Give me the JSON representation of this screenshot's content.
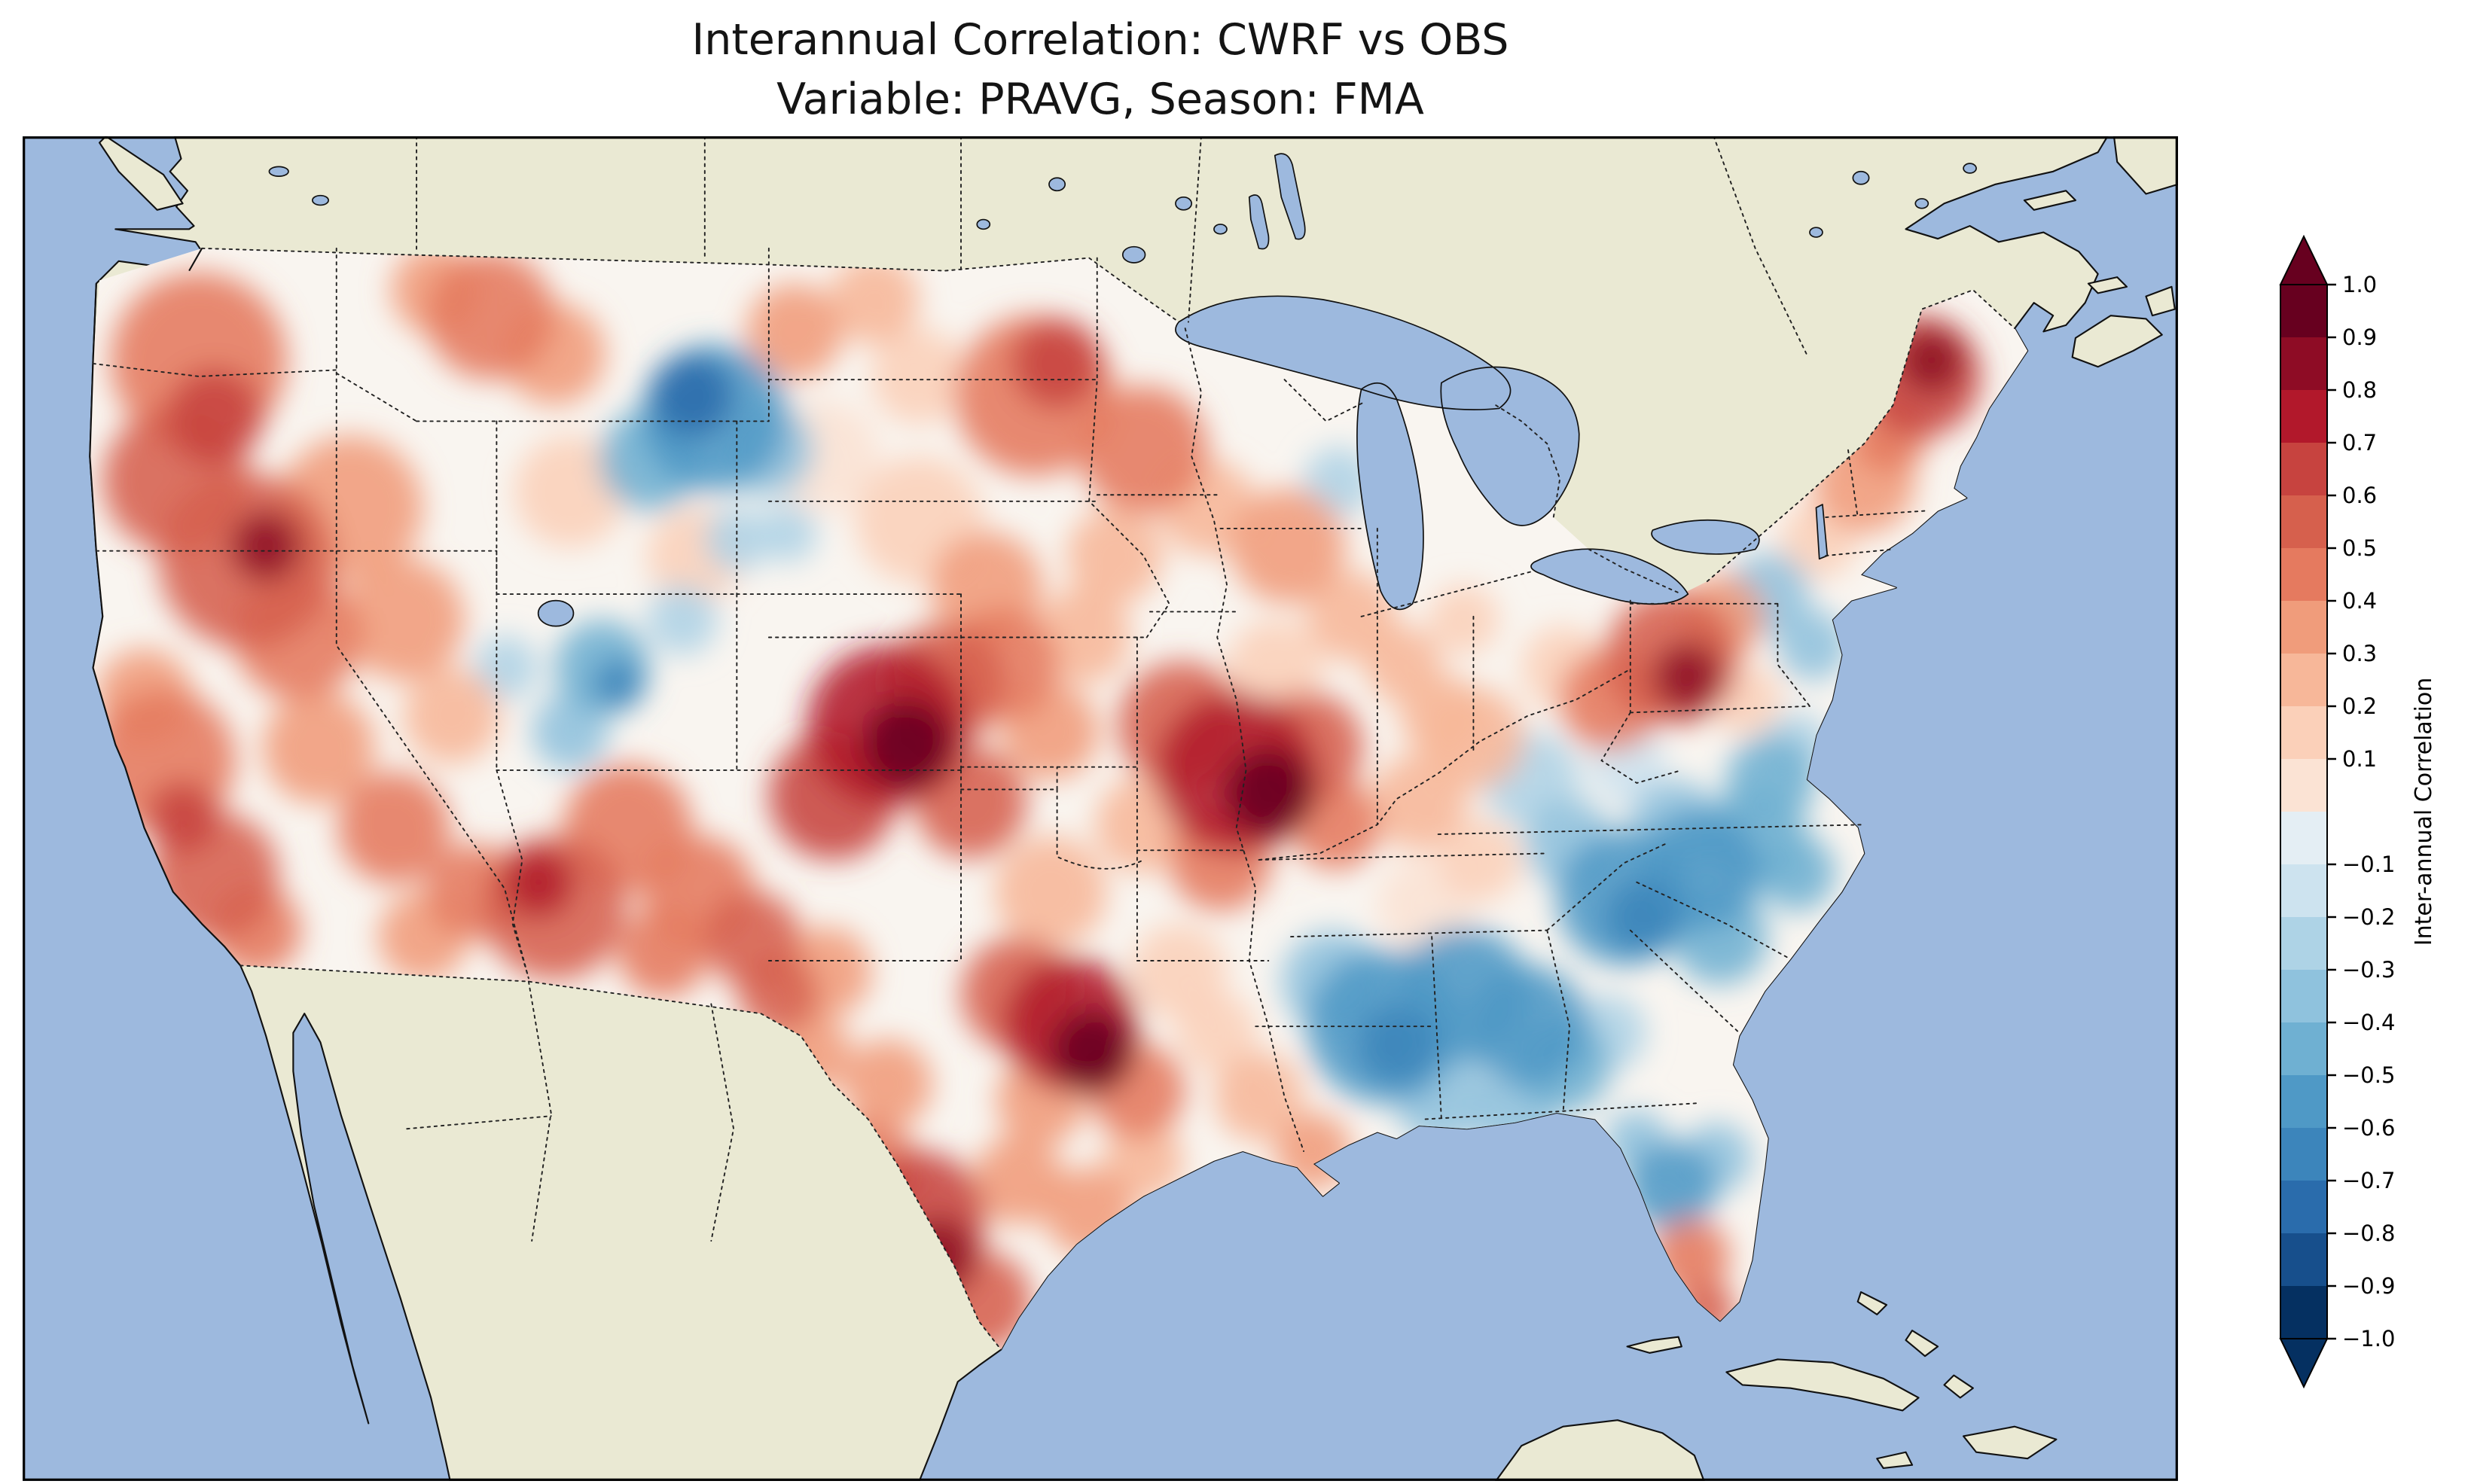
{
  "title": {
    "line1": "Interannual Correlation: CWRF vs OBS",
    "line2": "Variable: PRAVG, Season: FMA"
  },
  "map": {
    "colors": {
      "ocean": "#9db9de",
      "land": "#eae9d3",
      "coastline": "#111111",
      "field_base": "#f9f5f0",
      "border_dots": "#222222",
      "frame": "#000000"
    }
  },
  "colorbar": {
    "label": "Inter-annual Correlation",
    "colormap": "RdBu_r",
    "extend": "both",
    "ticks": [
      {
        "label": "1.0",
        "value": 1
      },
      {
        "label": "0.9",
        "value": 0.9
      },
      {
        "label": "0.8",
        "value": 0.8
      },
      {
        "label": "0.7",
        "value": 0.7
      },
      {
        "label": "0.6",
        "value": 0.6
      },
      {
        "label": "0.5",
        "value": 0.5
      },
      {
        "label": "0.4",
        "value": 0.4
      },
      {
        "label": "0.3",
        "value": 0.3
      },
      {
        "label": "0.2",
        "value": 0.2
      },
      {
        "label": "0.1",
        "value": 0.1
      },
      {
        "label": "−0.1",
        "value": -0.1
      },
      {
        "label": "−0.2",
        "value": -0.2
      },
      {
        "label": "−0.3",
        "value": -0.3
      },
      {
        "label": "−0.4",
        "value": -0.4
      },
      {
        "label": "−0.5",
        "value": -0.5
      },
      {
        "label": "−0.6",
        "value": -0.6
      },
      {
        "label": "−0.7",
        "value": -0.7
      },
      {
        "label": "−0.8",
        "value": -0.8
      },
      {
        "label": "−0.9",
        "value": -0.9
      },
      {
        "label": "−1.0",
        "value": -1
      }
    ],
    "segment_colors": [
      "#67001f",
      "#8e0c25",
      "#b2182b",
      "#c7433f",
      "#d6604d",
      "#e57a5f",
      "#f09c7b",
      "#f7b799",
      "#fbd0b9",
      "#fbe3d4",
      "#e4eef4",
      "#cde3ef",
      "#aed3e6",
      "#8fc2dd",
      "#6fb0d2",
      "#4f99c6",
      "#3c85bb",
      "#2a6cac",
      "#174f8c",
      "#053061"
    ]
  },
  "chart_data": {
    "type": "heatmap",
    "title": "Interannual Correlation: CWRF vs OBS — Variable: PRAVG, Season: FMA",
    "comparison": "CWRF vs OBS",
    "variable": "PRAVG",
    "season": "FMA",
    "region": "Continental United States (filled-contour correlation map)",
    "value_range": [
      -1.0,
      1.0
    ],
    "contour_interval": 0.1,
    "legend_position": "right-vertical-colorbar",
    "notable_regions": [
      {
        "region": "Pacific Northwest and California coast",
        "correlation": "0.4 to 0.8"
      },
      {
        "region": "Arizona / New Mexico",
        "correlation": "0.4 to 0.7"
      },
      {
        "region": "Colorado–Kansas High Plains",
        "correlation": "0.7 to 0.9"
      },
      {
        "region": "Iowa / northern Missouri",
        "correlation": "0.7 to 0.9"
      },
      {
        "region": "Oklahoma",
        "correlation": "0.8 to 1.0"
      },
      {
        "region": "South Texas",
        "correlation": "0.6 to 0.9"
      },
      {
        "region": "Pennsylvania",
        "correlation": "0.6 to 0.8"
      },
      {
        "region": "Maine / New England north",
        "correlation": "0.7 to 0.9"
      },
      {
        "region": "North Dakota / Minnesota border",
        "correlation": "0.4 to 0.65"
      },
      {
        "region": "Montana–western Dakotas patch",
        "correlation": "-0.4 to -0.7"
      },
      {
        "region": "Utah / Wyoming border patch",
        "correlation": "-0.3 to -0.6"
      },
      {
        "region": "Mississippi / Alabama / Tennessee band",
        "correlation": "-0.4 to -0.65"
      },
      {
        "region": "Carolinas and coastal Virginia",
        "correlation": "-0.4 to -0.6"
      },
      {
        "region": "Central Florida",
        "correlation": "-0.4 to -0.6"
      },
      {
        "region": "Central Great Plains background",
        "correlation": "-0.1 to 0.3"
      }
    ],
    "field_blob_format": "[x, y, radius, correlation] in map viewBox coordinates (1346 x 840)",
    "field_blobs": [
      [
        110,
        140,
        55,
        0.5
      ],
      [
        120,
        175,
        30,
        0.7
      ],
      [
        95,
        215,
        45,
        0.55
      ],
      [
        140,
        265,
        55,
        0.6
      ],
      [
        152,
        256,
        22,
        0.8
      ],
      [
        172,
        312,
        40,
        0.5
      ],
      [
        88,
        390,
        45,
        0.5
      ],
      [
        100,
        425,
        22,
        0.7
      ],
      [
        120,
        462,
        40,
        0.55
      ],
      [
        146,
        496,
        28,
        0.5
      ],
      [
        76,
        350,
        30,
        0.4
      ],
      [
        205,
        232,
        45,
        0.35
      ],
      [
        238,
        302,
        38,
        0.35
      ],
      [
        268,
        362,
        30,
        0.25
      ],
      [
        185,
        382,
        35,
        0.4
      ],
      [
        232,
        432,
        35,
        0.45
      ],
      [
        282,
        472,
        30,
        0.5
      ],
      [
        250,
        500,
        28,
        0.4
      ],
      [
        332,
        482,
        45,
        0.6
      ],
      [
        322,
        466,
        22,
        0.75
      ],
      [
        378,
        432,
        40,
        0.5
      ],
      [
        422,
        472,
        35,
        0.45
      ],
      [
        456,
        502,
        30,
        0.55
      ],
      [
        472,
        536,
        25,
        0.6
      ],
      [
        502,
        522,
        28,
        0.4
      ],
      [
        400,
        510,
        28,
        0.45
      ],
      [
        432,
        176,
        46,
        -0.55
      ],
      [
        418,
        162,
        26,
        -0.7
      ],
      [
        392,
        202,
        32,
        -0.4
      ],
      [
        466,
        196,
        28,
        -0.35
      ],
      [
        362,
        332,
        30,
        -0.4
      ],
      [
        372,
        342,
        16,
        -0.6
      ],
      [
        342,
        372,
        24,
        -0.3
      ],
      [
        302,
        332,
        20,
        -0.2
      ],
      [
        412,
        302,
        22,
        -0.25
      ],
      [
        446,
        252,
        20,
        -0.2
      ],
      [
        478,
        248,
        18,
        -0.25
      ],
      [
        292,
        112,
        40,
        0.45
      ],
      [
        332,
        136,
        32,
        0.35
      ],
      [
        258,
        96,
        28,
        0.4
      ],
      [
        482,
        122,
        30,
        0.35
      ],
      [
        532,
        102,
        28,
        0.3
      ],
      [
        560,
        150,
        30,
        0.2
      ],
      [
        632,
        162,
        50,
        0.5
      ],
      [
        646,
        142,
        28,
        0.65
      ],
      [
        700,
        196,
        40,
        0.45
      ],
      [
        740,
        232,
        30,
        0.3
      ],
      [
        682,
        262,
        30,
        0.25
      ],
      [
        540,
        368,
        50,
        0.75
      ],
      [
        553,
        380,
        28,
        0.9
      ],
      [
        506,
        412,
        40,
        0.65
      ],
      [
        576,
        342,
        38,
        0.6
      ],
      [
        612,
        330,
        35,
        0.5
      ],
      [
        642,
        372,
        30,
        0.4
      ],
      [
        592,
        416,
        35,
        0.55
      ],
      [
        602,
        282,
        35,
        0.35
      ],
      [
        662,
        312,
        30,
        0.3
      ],
      [
        700,
        430,
        30,
        0.25
      ],
      [
        758,
        398,
        50,
        0.75
      ],
      [
        779,
        410,
        28,
        0.9
      ],
      [
        724,
        368,
        40,
        0.6
      ],
      [
        802,
        382,
        35,
        0.55
      ],
      [
        748,
        452,
        32,
        0.5
      ],
      [
        820,
        430,
        28,
        0.45
      ],
      [
        655,
        555,
        42,
        0.75
      ],
      [
        668,
        572,
        26,
        0.95
      ],
      [
        622,
        536,
        36,
        0.55
      ],
      [
        696,
        596,
        30,
        0.5
      ],
      [
        636,
        602,
        28,
        0.4
      ],
      [
        560,
        676,
        42,
        0.7
      ],
      [
        572,
        700,
        24,
        0.85
      ],
      [
        598,
        728,
        32,
        0.6
      ],
      [
        528,
        646,
        32,
        0.5
      ],
      [
        622,
        652,
        28,
        0.4
      ],
      [
        666,
        672,
        28,
        0.35
      ],
      [
        700,
        640,
        25,
        0.3
      ],
      [
        540,
        592,
        28,
        0.4
      ],
      [
        492,
        572,
        25,
        0.35
      ],
      [
        772,
        600,
        28,
        0.3
      ],
      [
        806,
        634,
        24,
        0.4
      ],
      [
        746,
        560,
        25,
        0.2
      ],
      [
        850,
        556,
        48,
        -0.5
      ],
      [
        858,
        568,
        25,
        -0.65
      ],
      [
        900,
        536,
        42,
        -0.5
      ],
      [
        940,
        556,
        38,
        -0.5
      ],
      [
        818,
        528,
        32,
        -0.35
      ],
      [
        886,
        600,
        30,
        -0.35
      ],
      [
        932,
        610,
        26,
        -0.3
      ],
      [
        962,
        580,
        30,
        -0.4
      ],
      [
        1000,
        476,
        42,
        -0.5
      ],
      [
        1012,
        488,
        24,
        -0.6
      ],
      [
        1048,
        458,
        38,
        -0.5
      ],
      [
        1082,
        438,
        32,
        -0.45
      ],
      [
        1092,
        402,
        28,
        -0.4
      ],
      [
        1060,
        500,
        30,
        -0.45
      ],
      [
        1108,
        460,
        24,
        -0.4
      ],
      [
        1032,
        432,
        30,
        -0.35
      ],
      [
        966,
        442,
        28,
        -0.3
      ],
      [
        942,
        402,
        30,
        -0.2
      ],
      [
        906,
        376,
        32,
        0.25
      ],
      [
        872,
        416,
        30,
        0.3
      ],
      [
        910,
        452,
        26,
        0.2
      ],
      [
        790,
        256,
        36,
        0.35
      ],
      [
        830,
        300,
        28,
        0.3
      ],
      [
        862,
        330,
        24,
        0.3
      ],
      [
        886,
        362,
        26,
        0.25
      ],
      [
        822,
        216,
        22,
        -0.2
      ],
      [
        900,
        302,
        22,
        0.2
      ],
      [
        1030,
        326,
        42,
        0.6
      ],
      [
        1040,
        338,
        22,
        0.8
      ],
      [
        992,
        352,
        32,
        0.45
      ],
      [
        1062,
        300,
        26,
        0.4
      ],
      [
        1090,
        286,
        26,
        -0.3
      ],
      [
        1118,
        318,
        22,
        -0.35
      ],
      [
        1076,
        352,
        22,
        0.2
      ],
      [
        1108,
        380,
        20,
        -0.25
      ],
      [
        1185,
        150,
        38,
        0.7
      ],
      [
        1192,
        140,
        20,
        0.85
      ],
      [
        1150,
        216,
        32,
        0.4
      ],
      [
        1122,
        252,
        24,
        0.2
      ],
      [
        1166,
        186,
        24,
        0.5
      ],
      [
        1030,
        656,
        28,
        -0.5
      ],
      [
        1058,
        638,
        22,
        -0.35
      ],
      [
        1042,
        700,
        24,
        0.5
      ],
      [
        1052,
        734,
        18,
        0.55
      ],
      [
        1008,
        628,
        20,
        -0.3
      ],
      [
        560,
        240,
        40,
        0.15
      ],
      [
        500,
        200,
        35,
        0.1
      ],
      [
        420,
        262,
        30,
        0.15
      ],
      [
        342,
        222,
        35,
        0.2
      ],
      [
        782,
        332,
        30,
        0.2
      ],
      [
        642,
        472,
        35,
        0.25
      ],
      [
        722,
        522,
        30,
        0.15
      ],
      [
        962,
        332,
        26,
        0.2
      ],
      [
        1002,
        392,
        24,
        -0.15
      ],
      [
        876,
        480,
        30,
        0.1
      ],
      [
        930,
        660,
        24,
        0.2
      ],
      [
        990,
        560,
        24,
        -0.2
      ]
    ]
  }
}
